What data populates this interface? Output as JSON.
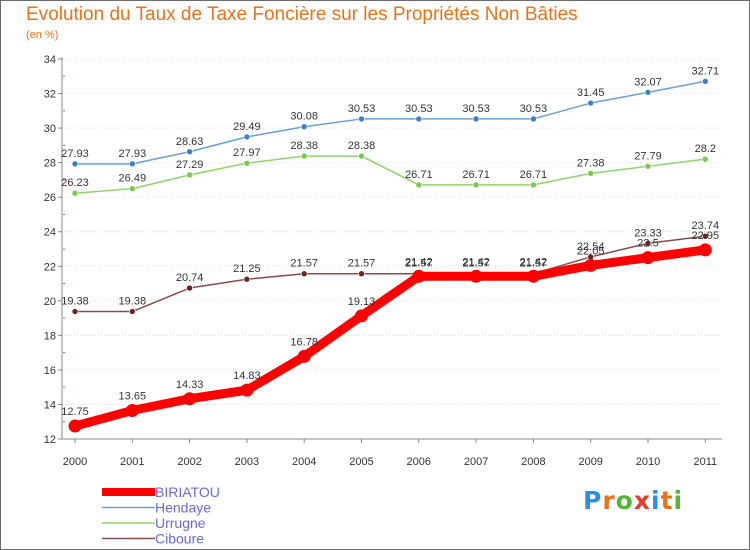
{
  "header": {
    "title": "Evolution du Taux de Taxe Foncière sur les Propriétés Non Bâties",
    "unit": "(en %)"
  },
  "logo": {
    "text": "Proxiti",
    "letter_colors": [
      "#2f8fdf",
      "#e8721c",
      "#55b535",
      "#e63a2b",
      "#2f8fdf",
      "#e8721c",
      "#55b535"
    ]
  },
  "chart_data": {
    "type": "line",
    "title": "Evolution du Taux de Taxe Foncière sur les Propriétés Non Bâties",
    "ylabel": "(en %)",
    "xlabel": "",
    "categories": [
      "2000",
      "2001",
      "2002",
      "2003",
      "2004",
      "2005",
      "2006",
      "2007",
      "2008",
      "2009",
      "2010",
      "2011"
    ],
    "ylim": [
      12,
      34
    ],
    "yticks": [
      12,
      14,
      16,
      18,
      20,
      22,
      24,
      26,
      28,
      30,
      32,
      34
    ],
    "grid": "horizontal",
    "legend_position": "bottom-left",
    "series": [
      {
        "name": "Hendaye",
        "color": "#6a9fd4",
        "marker": "#3c7fc4",
        "values": [
          27.93,
          27.93,
          28.63,
          29.49,
          30.08,
          30.53,
          30.53,
          30.53,
          30.53,
          31.45,
          32.07,
          32.71
        ],
        "labels": [
          "27.93",
          "27.93",
          "28.63",
          "29.49",
          "30.08",
          "30.53",
          "30.53",
          "30.53",
          "30.53",
          "31.45",
          "32.07",
          "32.71"
        ]
      },
      {
        "name": "Urrugne",
        "color": "#8fd46a",
        "marker": "#78c850",
        "values": [
          26.23,
          26.49,
          27.29,
          27.97,
          28.38,
          28.38,
          26.71,
          26.71,
          26.71,
          27.38,
          27.79,
          28.2
        ],
        "labels": [
          "26.23",
          "26.49",
          "27.29",
          "27.97",
          "28.38",
          "28.38",
          "26.71",
          "26.71",
          "26.71",
          "27.38",
          "27.79",
          "28.2"
        ]
      },
      {
        "name": "Ciboure",
        "color": "#8b4a4a",
        "marker": "#6b2424",
        "values": [
          19.38,
          19.38,
          20.74,
          21.25,
          21.57,
          21.57,
          21.57,
          21.57,
          21.57,
          22.54,
          23.33,
          23.74
        ],
        "labels": [
          "19.38",
          "19.38",
          "20.74",
          "21.25",
          "21.57",
          "21.57",
          "21.57",
          "21.57",
          "21.57",
          "22.54",
          "23.33",
          "23.74"
        ]
      },
      {
        "name": "BIRIATOU",
        "color": "#ff0000",
        "marker": "#ff0000",
        "values": [
          12.75,
          13.65,
          14.33,
          14.83,
          16.78,
          19.13,
          21.42,
          21.42,
          21.42,
          22.05,
          22.5,
          22.95
        ],
        "labels": [
          "12.75",
          "13.65",
          "14.33",
          "14.83",
          "16.78",
          "19.13",
          "21.42",
          "21.42",
          "21.42",
          "22.05",
          "22.5",
          "22.95"
        ]
      }
    ],
    "legend": [
      "BIRIATOU",
      "Hendaye",
      "Urrugne",
      "Ciboure"
    ]
  }
}
